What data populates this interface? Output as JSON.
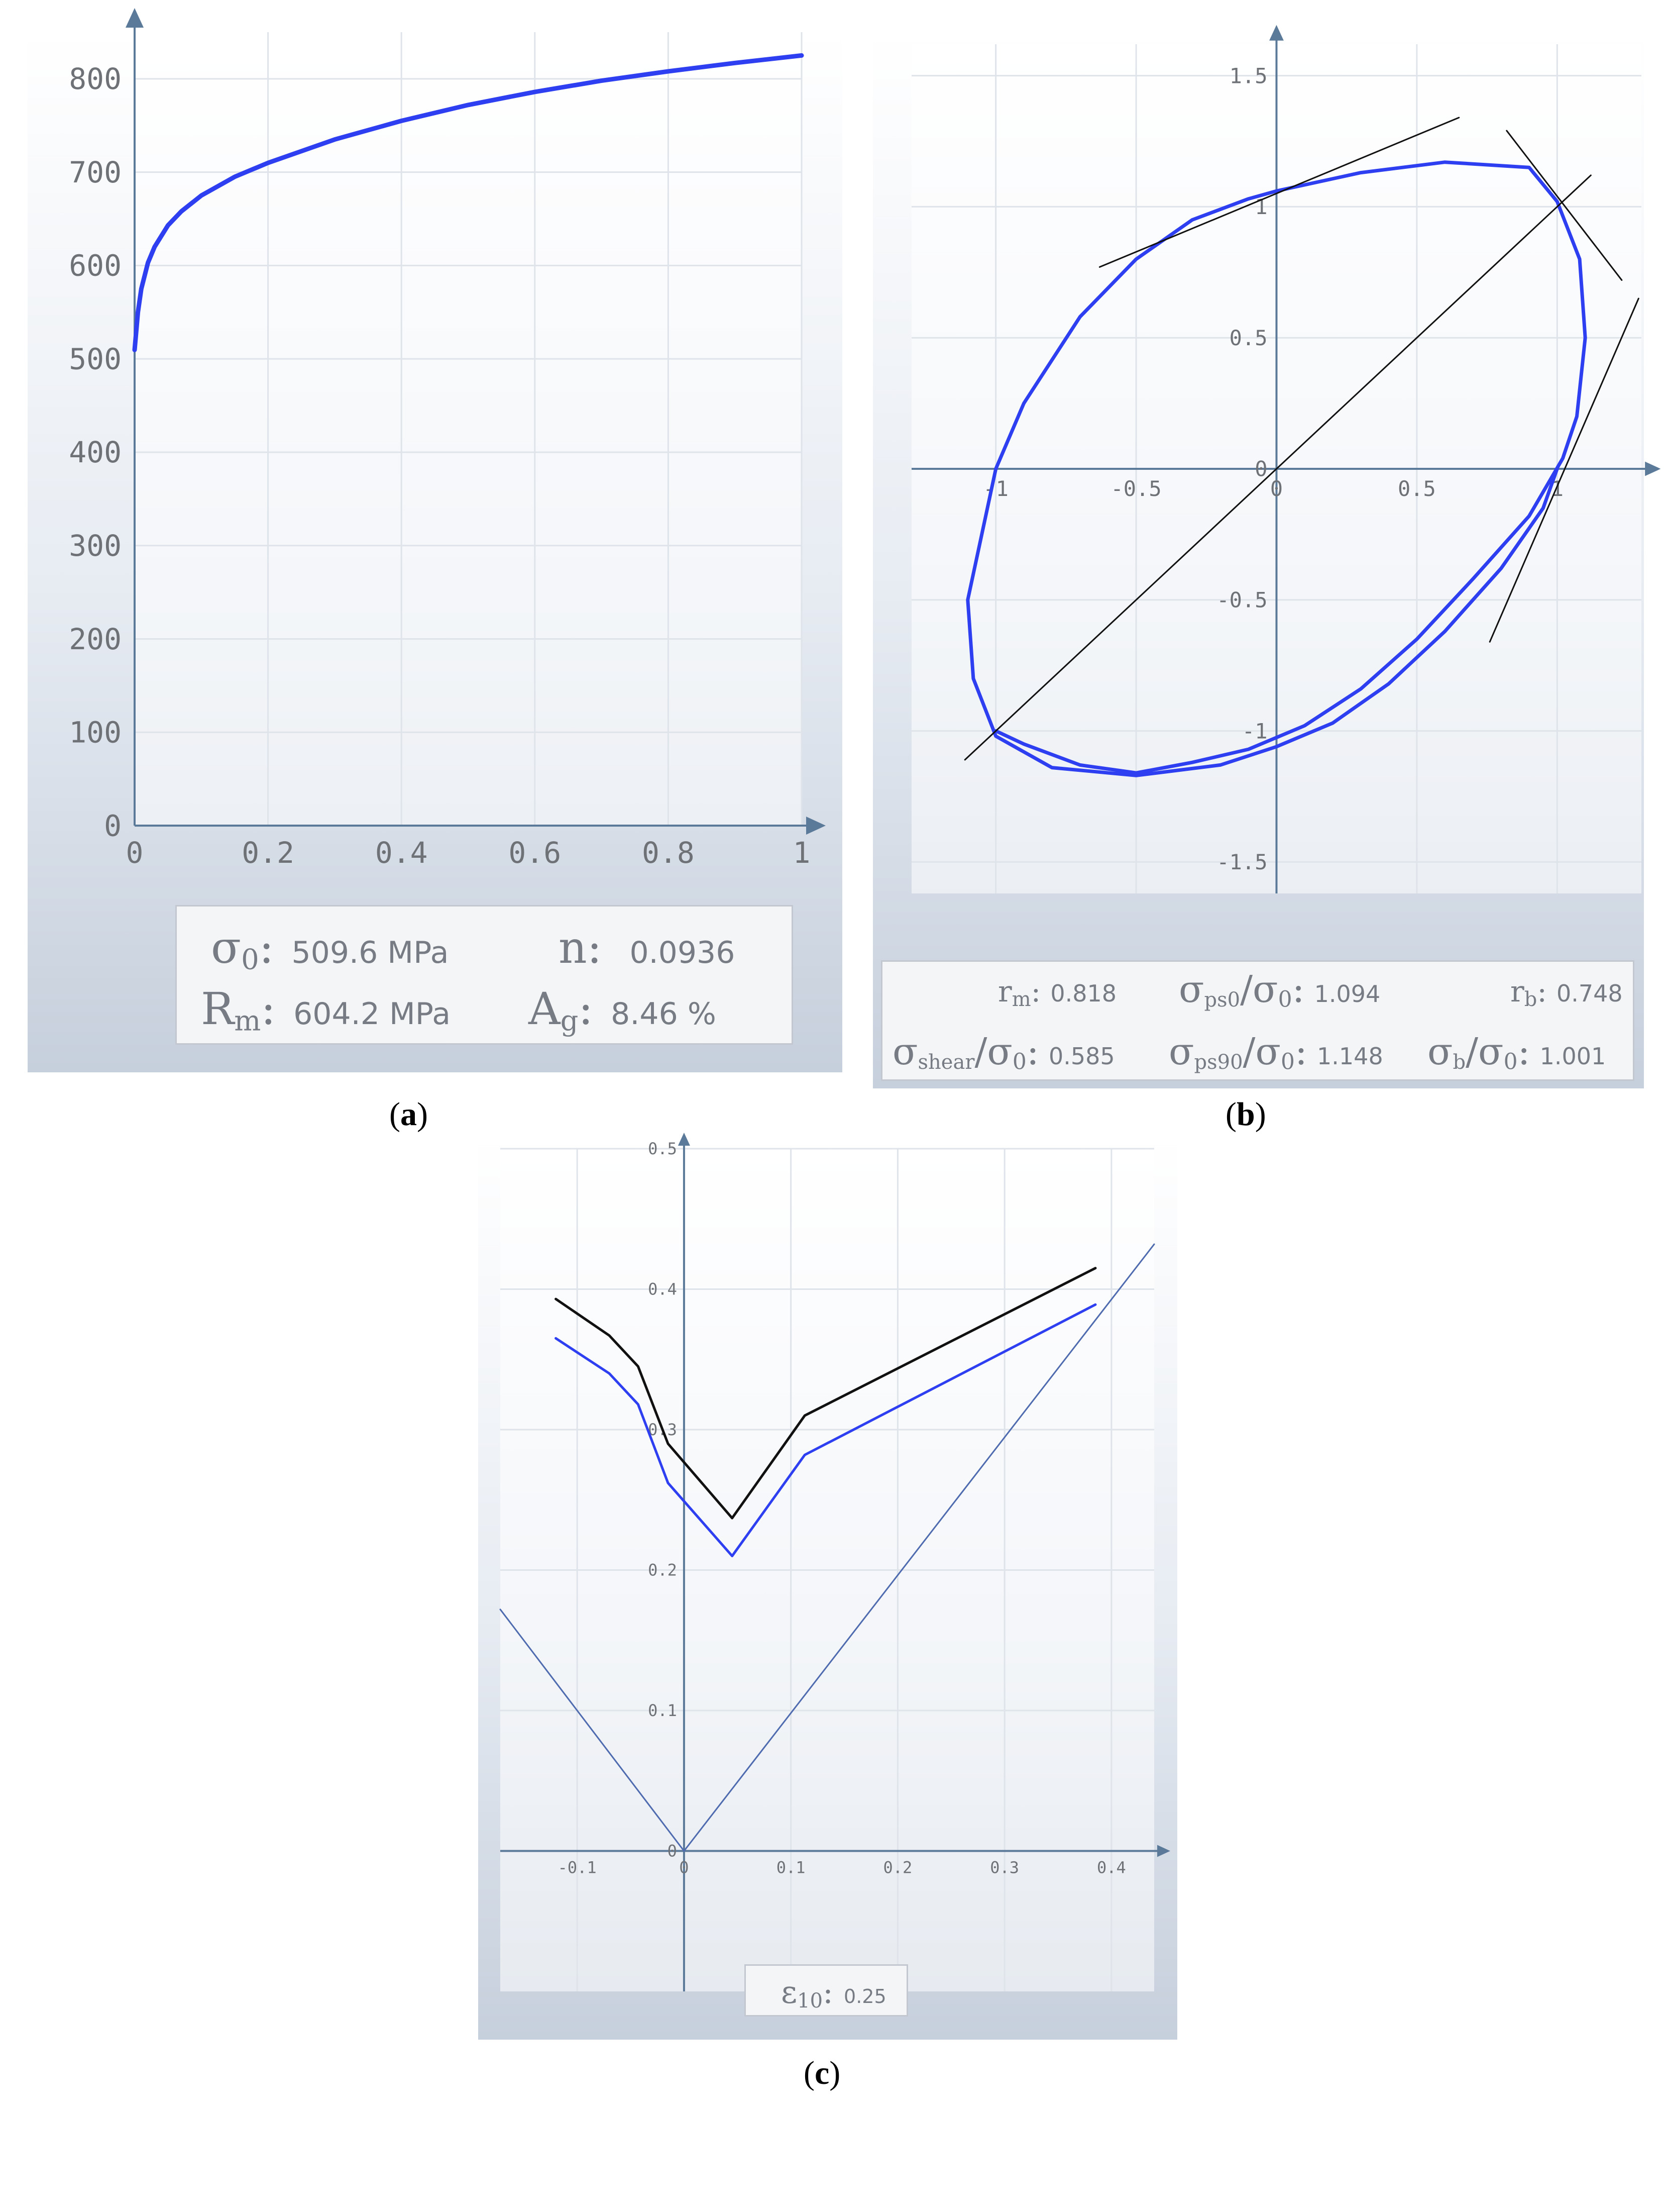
{
  "colors": {
    "curve_blue": "#2d3ff0",
    "curve_black": "#111111",
    "grid": "#dfe3ea",
    "axis": "#5b7a99",
    "tick_text": "#6e7277"
  },
  "captions": {
    "a": "a",
    "b": "b",
    "c": "c"
  },
  "chart_data": [
    {
      "id": "a",
      "type": "line",
      "title": "",
      "xlabel": "",
      "ylabel": "",
      "xlim": [
        0,
        1
      ],
      "ylim": [
        0,
        850
      ],
      "grid": true,
      "x_ticks": [
        0,
        0.2,
        0.4,
        0.6,
        0.8,
        1
      ],
      "x_tick_labels": [
        "0",
        "0.2",
        "0.4",
        "0.6",
        "0.8",
        "1"
      ],
      "y_ticks": [
        0,
        100,
        200,
        300,
        400,
        500,
        600,
        700,
        800
      ],
      "y_tick_labels": [
        "0",
        "100",
        "200",
        "300",
        "400",
        "500",
        "600",
        "700",
        "800"
      ],
      "series": [
        {
          "color": "#2d3ff0",
          "x": [
            0,
            0.005,
            0.01,
            0.02,
            0.03,
            0.05,
            0.07,
            0.1,
            0.15,
            0.2,
            0.3,
            0.4,
            0.5,
            0.6,
            0.7,
            0.8,
            0.9,
            1.0
          ],
          "y": [
            509.6,
            550,
            575,
            603,
            620,
            643,
            658,
            675,
            695,
            710,
            735,
            755,
            772,
            786,
            798,
            808,
            817,
            825
          ]
        }
      ],
      "info": [
        {
          "symbol": "σ",
          "sub": "0",
          "sep": ":",
          "value": "509.6 MPa"
        },
        {
          "symbol": "n",
          "sub": "",
          "sep": ":",
          "value": "0.0936"
        },
        {
          "symbol": "R",
          "sub": "m",
          "sep": ":",
          "value": "604.2 MPa"
        },
        {
          "symbol": "A",
          "sub": "g",
          "sep": ":",
          "value": "8.46 %"
        }
      ]
    },
    {
      "id": "b",
      "type": "line",
      "title": "",
      "xlabel": "",
      "ylabel": "",
      "xlim": [
        -1.3,
        1.3
      ],
      "ylim": [
        -1.62,
        1.62
      ],
      "grid": true,
      "x_ticks": [
        -1,
        -0.5,
        0,
        0.5,
        1
      ],
      "x_tick_labels": [
        "-1",
        "-0.5",
        "0",
        "0.5",
        "1"
      ],
      "y_ticks": [
        -1.5,
        -1,
        -0.5,
        0,
        0.5,
        1,
        1.5
      ],
      "y_tick_labels": [
        "-1.5",
        "-1",
        "-0.5",
        "0",
        "0.5",
        "1",
        "1.5"
      ],
      "series": [
        {
          "color": "#2d3ff0",
          "closed": true,
          "x": [
            1.0,
            0.95,
            0.8,
            0.6,
            0.4,
            0.2,
            0.0,
            -0.2,
            -0.5,
            -0.8,
            -1.0,
            -1.08,
            -1.1,
            -1.0,
            -0.9,
            -0.7,
            -0.5,
            -0.3,
            -0.1,
            0.0,
            0.3,
            0.6,
            0.9,
            1.0,
            1.08,
            1.1,
            1.07,
            1.02,
            0.9,
            0.7,
            0.5,
            0.3,
            0.1,
            -0.1,
            -0.3,
            -0.5,
            -0.7,
            -0.9,
            -1.0
          ],
          "y": [
            0.0,
            -0.15,
            -0.38,
            -0.62,
            -0.82,
            -0.97,
            -1.06,
            -1.13,
            -1.17,
            -1.14,
            -1.02,
            -0.8,
            -0.5,
            0.0,
            0.25,
            0.58,
            0.8,
            0.95,
            1.03,
            1.06,
            1.13,
            1.17,
            1.15,
            1.02,
            0.8,
            0.5,
            0.2,
            0.04,
            -0.18,
            -0.42,
            -0.65,
            -0.84,
            -0.98,
            -1.07,
            -1.12,
            -1.16,
            -1.13,
            -1.05,
            -1.0
          ]
        },
        {
          "color": "#111111",
          "x": [
            -1.11,
            1.12
          ],
          "y": [
            -1.11,
            1.12
          ]
        },
        {
          "color": "#111111",
          "x": [
            -0.63,
            0.65
          ],
          "y": [
            0.77,
            1.34
          ]
        },
        {
          "color": "#111111",
          "x": [
            0.82,
            1.23
          ],
          "y": [
            1.29,
            0.72
          ]
        },
        {
          "color": "#111111",
          "x": [
            0.76,
            1.29
          ],
          "y": [
            -0.66,
            0.65
          ]
        }
      ],
      "info": [
        {
          "symbol": "r",
          "sub": "m",
          "sep": ":",
          "value": "0.818"
        },
        {
          "symbol": "σ",
          "sub": "ps0",
          "mid": "/σ",
          "sub2": "0",
          "sep": ":",
          "value": "1.094"
        },
        {
          "symbol": "r",
          "sub": "b",
          "sep": ":",
          "value": "0.748"
        },
        {
          "symbol": "σ",
          "sub": "shear",
          "mid": "/σ",
          "sub2": "0",
          "sep": ":",
          "value": "0.585"
        },
        {
          "symbol": "σ",
          "sub": "ps90",
          "mid": "/σ",
          "sub2": "0",
          "sep": ":",
          "value": "1.148"
        },
        {
          "symbol": "σ",
          "sub": "b",
          "mid": "/σ",
          "sub2": "0",
          "sep": ":",
          "value": "1.001"
        }
      ]
    },
    {
      "id": "c",
      "type": "line",
      "title": "",
      "xlabel": "",
      "ylabel": "",
      "xlim": [
        -0.172,
        0.44
      ],
      "ylim": [
        -0.1,
        0.5
      ],
      "grid": true,
      "x_ticks": [
        -0.1,
        0,
        0.1,
        0.2,
        0.3,
        0.4
      ],
      "x_tick_labels": [
        "-0.1",
        "0",
        "0.1",
        "0.2",
        "0.3",
        "0.4"
      ],
      "y_ticks": [
        0,
        0.1,
        0.2,
        0.3,
        0.4,
        0.5
      ],
      "y_tick_labels": [
        "0",
        "0.1",
        "0.2",
        "0.3",
        "0.4",
        "0.5"
      ],
      "series": [
        {
          "color": "#111111",
          "x": [
            -0.12,
            -0.07,
            -0.043,
            -0.015,
            0.045,
            0.113,
            0.385
          ],
          "y": [
            0.393,
            0.367,
            0.345,
            0.29,
            0.237,
            0.31,
            0.415
          ]
        },
        {
          "color": "#2d3ff0",
          "x": [
            -0.12,
            -0.07,
            -0.043,
            -0.015,
            0.045,
            0.113,
            0.385
          ],
          "y": [
            0.365,
            0.34,
            0.318,
            0.262,
            0.21,
            0.282,
            0.389
          ]
        },
        {
          "color": "#4f6bb0",
          "thin": true,
          "x": [
            -0.172,
            0,
            0.44
          ],
          "y": [
            0.172,
            0,
            0.432
          ]
        }
      ],
      "info": [
        {
          "symbol": "ε",
          "sub": "10",
          "sep": ":",
          "value": "0.25"
        }
      ]
    }
  ]
}
